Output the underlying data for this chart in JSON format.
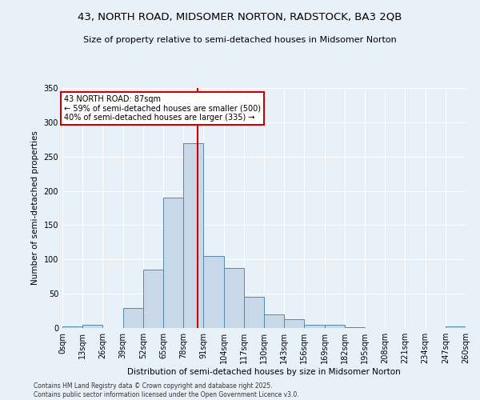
{
  "title1": "43, NORTH ROAD, MIDSOMER NORTON, RADSTOCK, BA3 2QB",
  "title2": "Size of property relative to semi-detached houses in Midsomer Norton",
  "xlabel": "Distribution of semi-detached houses by size in Midsomer Norton",
  "ylabel": "Number of semi-detached properties",
  "bin_labels": [
    "0sqm",
    "13sqm",
    "26sqm",
    "39sqm",
    "52sqm",
    "65sqm",
    "78sqm",
    "91sqm",
    "104sqm",
    "117sqm",
    "130sqm",
    "143sqm",
    "156sqm",
    "169sqm",
    "182sqm",
    "195sqm",
    "208sqm",
    "221sqm",
    "234sqm",
    "247sqm",
    "260sqm"
  ],
  "bin_edges": [
    0,
    13,
    26,
    39,
    52,
    65,
    78,
    91,
    104,
    117,
    130,
    143,
    156,
    169,
    182,
    195,
    208,
    221,
    234,
    247,
    260
  ],
  "bar_heights": [
    2,
    5,
    0,
    29,
    85,
    190,
    270,
    105,
    88,
    45,
    20,
    13,
    5,
    5,
    1,
    0,
    0,
    0,
    0,
    2
  ],
  "bar_color": "#c8d8e8",
  "bar_edge_color": "#5588aa",
  "property_value": 87,
  "vline_color": "#cc0000",
  "annotation_title": "43 NORTH ROAD: 87sqm",
  "annotation_line1": "← 59% of semi-detached houses are smaller (500)",
  "annotation_line2": "40% of semi-detached houses are larger (335) →",
  "annotation_box_color": "#ffffff",
  "annotation_box_edge": "#cc0000",
  "footnote1": "Contains HM Land Registry data © Crown copyright and database right 2025.",
  "footnote2": "Contains public sector information licensed under the Open Government Licence v3.0.",
  "bg_color": "#e8f0f8",
  "ylim": [
    0,
    350
  ],
  "yticks": [
    0,
    50,
    100,
    150,
    200,
    250,
    300,
    350
  ]
}
